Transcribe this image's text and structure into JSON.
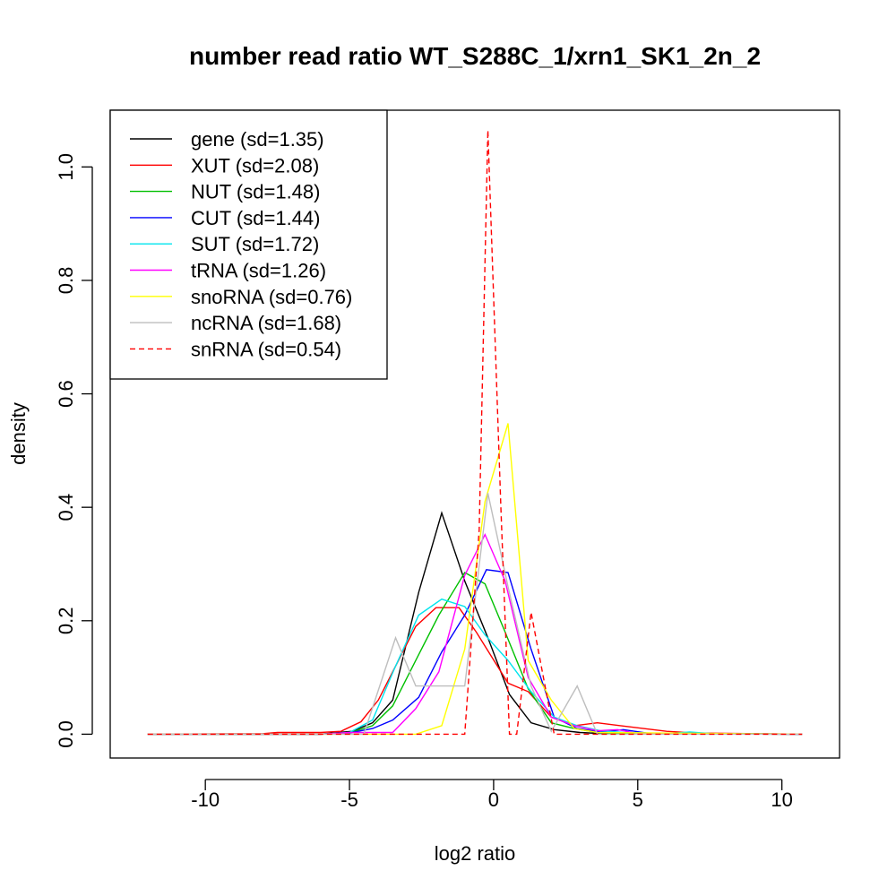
{
  "chart_data": {
    "type": "line",
    "title": "number read ratio WT_S288C_1/xrn1_SK1_2n_2",
    "xlabel": "log2 ratio",
    "ylabel": "density",
    "xlim": [
      -13.3,
      12.0
    ],
    "ylim": [
      -0.042,
      1.1
    ],
    "x_ticks": [
      -10,
      -5,
      0,
      5,
      10
    ],
    "x_tick_labels": [
      "-10",
      "-5",
      "0",
      "5",
      "10"
    ],
    "y_ticks": [
      0.0,
      0.2,
      0.4,
      0.6,
      0.8,
      1.0
    ],
    "y_tick_labels": [
      "0.0",
      "0.2",
      "0.4",
      "0.6",
      "0.8",
      "1.0"
    ],
    "grid": false,
    "legend_position": "top-left",
    "series": [
      {
        "name": "gene (sd=1.35)",
        "color": "#000000",
        "dash": false,
        "x": [
          -12,
          -6,
          -5.6,
          -4.9,
          -4.2,
          -3.5,
          -2.6,
          -1.8,
          -1.0,
          -0.2,
          0.55,
          1.3,
          2.1,
          3.0,
          3.8,
          10.7
        ],
        "y": [
          0,
          0,
          0.002,
          0.005,
          0.02,
          0.06,
          0.25,
          0.39,
          0.27,
          0.17,
          0.07,
          0.02,
          0.008,
          0.003,
          0.001,
          0
        ]
      },
      {
        "name": "XUT (sd=2.08)",
        "color": "#ff0000",
        "dash": false,
        "x": [
          -12,
          -8,
          -7.5,
          -6,
          -5.3,
          -4.6,
          -4.0,
          -3.4,
          -2.7,
          -2.0,
          -1.2,
          -0.6,
          0.5,
          1.2,
          2.0,
          2.8,
          3.6,
          4.4,
          5.2,
          6.0,
          7.0,
          10.7
        ],
        "y": [
          0,
          0.001,
          0.003,
          0.003,
          0.005,
          0.022,
          0.06,
          0.12,
          0.19,
          0.223,
          0.223,
          0.18,
          0.09,
          0.075,
          0.03,
          0.015,
          0.02,
          0.015,
          0.01,
          0.005,
          0.002,
          0
        ]
      },
      {
        "name": "NUT (sd=1.48)",
        "color": "#00c000",
        "dash": false,
        "x": [
          -12,
          -6,
          -5.0,
          -4.2,
          -3.5,
          -2.7,
          -1.9,
          -1.0,
          -0.3,
          0.4,
          1.2,
          2.0,
          2.8,
          3.6,
          4.4,
          10.7
        ],
        "y": [
          0,
          0,
          0.002,
          0.015,
          0.05,
          0.13,
          0.21,
          0.285,
          0.265,
          0.18,
          0.08,
          0.02,
          0.01,
          0.003,
          0.001,
          0
        ]
      },
      {
        "name": "CUT (sd=1.44)",
        "color": "#0000ff",
        "dash": false,
        "x": [
          -12,
          -6,
          -5.0,
          -4.2,
          -3.5,
          -2.6,
          -1.8,
          -1.0,
          -0.25,
          0.5,
          1.3,
          2.1,
          2.9,
          3.7,
          4.5,
          5.3,
          10.7
        ],
        "y": [
          0,
          0,
          0.002,
          0.01,
          0.025,
          0.065,
          0.145,
          0.21,
          0.29,
          0.285,
          0.15,
          0.03,
          0.01,
          0.004,
          0.008,
          0.002,
          0
        ]
      },
      {
        "name": "SUT (sd=1.72)",
        "color": "#00e5ee",
        "dash": false,
        "x": [
          -12,
          -6,
          -5.0,
          -4.2,
          -3.4,
          -2.6,
          -1.8,
          -1.0,
          -0.3,
          0.5,
          1.3,
          2.1,
          2.9,
          3.7,
          4.5,
          5.3,
          6.1,
          6.8,
          7.6,
          10.7
        ],
        "y": [
          0,
          0,
          0.003,
          0.025,
          0.12,
          0.21,
          0.238,
          0.225,
          0.175,
          0.13,
          0.075,
          0.03,
          0.015,
          0.006,
          0.003,
          0.002,
          0.001,
          0.004,
          0.001,
          0
        ]
      },
      {
        "name": "tRNA (sd=1.26)",
        "color": "#ff00ff",
        "dash": false,
        "x": [
          -12,
          -6,
          -5.0,
          -3.5,
          -2.7,
          -1.9,
          -1.0,
          -0.3,
          0.4,
          1.2,
          2.0,
          2.8,
          3.6,
          4.3,
          5.0,
          10.7
        ],
        "y": [
          0,
          0,
          0.003,
          0.003,
          0.045,
          0.11,
          0.28,
          0.352,
          0.27,
          0.1,
          0.03,
          0.015,
          0.006,
          0.008,
          0.001,
          0
        ]
      },
      {
        "name": "snoRNA (sd=0.76)",
        "color": "#ffff00",
        "dash": false,
        "x": [
          -12,
          -2.7,
          -1.8,
          -1.0,
          -0.3,
          0.5,
          1.2,
          2.0,
          2.8,
          3.6,
          10.7
        ],
        "y": [
          0,
          0,
          0.015,
          0.15,
          0.41,
          0.548,
          0.13,
          0.06,
          0.01,
          0.003,
          0
        ]
      },
      {
        "name": "ncRNA (sd=1.68)",
        "color": "#bebebe",
        "dash": false,
        "x": [
          -12,
          -4.5,
          -3.4,
          -2.7,
          -1.9,
          -1.0,
          -0.2,
          0.5,
          1.3,
          2.0,
          2.9,
          3.6,
          10.7
        ],
        "y": [
          0,
          0,
          0.17,
          0.085,
          0.085,
          0.085,
          0.425,
          0.26,
          0.085,
          0.005,
          0.085,
          0,
          0
        ]
      },
      {
        "name": "snRNA (sd=0.54)",
        "color": "#ff0000",
        "dash": true,
        "x": [
          -12,
          -1.0,
          -0.5,
          -0.2,
          0.25,
          0.55,
          0.8,
          1.3,
          2.1,
          10.7
        ],
        "y": [
          0,
          0,
          0.36,
          1.065,
          0.4,
          0,
          0,
          0.215,
          0,
          0
        ]
      }
    ]
  }
}
